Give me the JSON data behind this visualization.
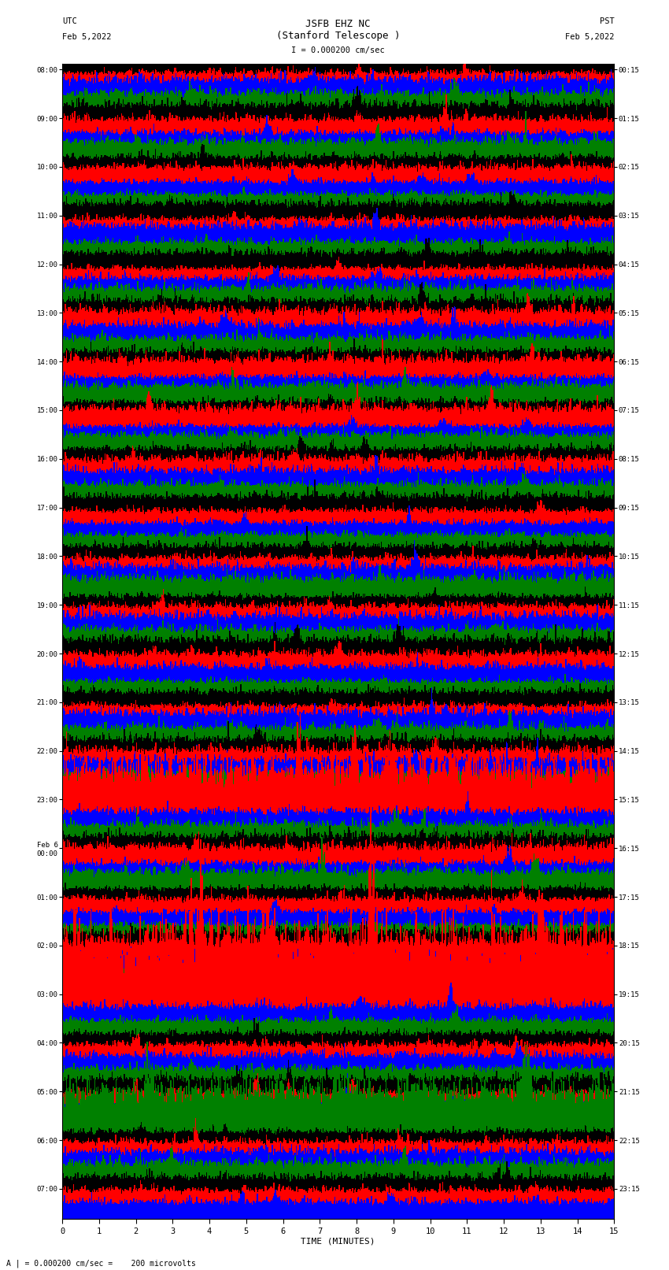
{
  "title_line1": "JSFB EHZ NC",
  "title_line2": "(Stanford Telescope )",
  "scale_label": "I = 0.000200 cm/sec",
  "utc_label": "UTC\nFeb 5,2022",
  "pst_label": "PST\nFeb 5,2022",
  "bottom_label": "A | = 0.000200 cm/sec =    200 microvolts",
  "xlabel": "TIME (MINUTES)",
  "colors": [
    "black",
    "red",
    "blue",
    "green"
  ],
  "left_times": [
    "08:00",
    "",
    "",
    "",
    "09:00",
    "",
    "",
    "",
    "10:00",
    "",
    "",
    "",
    "11:00",
    "",
    "",
    "",
    "12:00",
    "",
    "",
    "",
    "13:00",
    "",
    "",
    "",
    "14:00",
    "",
    "",
    "",
    "15:00",
    "",
    "",
    "",
    "16:00",
    "",
    "",
    "",
    "17:00",
    "",
    "",
    "",
    "18:00",
    "",
    "",
    "",
    "19:00",
    "",
    "",
    "",
    "20:00",
    "",
    "",
    "",
    "21:00",
    "",
    "",
    "",
    "22:00",
    "",
    "",
    "",
    "23:00",
    "",
    "",
    "",
    "Feb 6\n00:00",
    "",
    "",
    "",
    "01:00",
    "",
    "",
    "",
    "02:00",
    "",
    "",
    "",
    "03:00",
    "",
    "",
    "",
    "04:00",
    "",
    "",
    "",
    "05:00",
    "",
    "",
    "",
    "06:00",
    "",
    "",
    "",
    "07:00",
    "",
    ""
  ],
  "right_times": [
    "00:15",
    "",
    "",
    "",
    "01:15",
    "",
    "",
    "",
    "02:15",
    "",
    "",
    "",
    "03:15",
    "",
    "",
    "",
    "04:15",
    "",
    "",
    "",
    "05:15",
    "",
    "",
    "",
    "06:15",
    "",
    "",
    "",
    "07:15",
    "",
    "",
    "",
    "08:15",
    "",
    "",
    "",
    "09:15",
    "",
    "",
    "",
    "10:15",
    "",
    "",
    "",
    "11:15",
    "",
    "",
    "",
    "12:15",
    "",
    "",
    "",
    "13:15",
    "",
    "",
    "",
    "14:15",
    "",
    "",
    "",
    "15:15",
    "",
    "",
    "",
    "16:15",
    "",
    "",
    "",
    "17:15",
    "",
    "",
    "",
    "18:15",
    "",
    "",
    "",
    "19:15",
    "",
    "",
    "",
    "20:15",
    "",
    "",
    "",
    "21:15",
    "",
    "",
    "",
    "22:15",
    "",
    "",
    "",
    "23:15",
    "",
    ""
  ],
  "n_rows": 95,
  "minutes": 15,
  "sample_rate": 100,
  "amplitude": 0.42,
  "background_color": "white",
  "line_width": 0.35,
  "special_green_row": 77,
  "special_green_amp": 2.5,
  "special_red_row": 61,
  "special_red_amp": 1.6,
  "special_red2_row": 87,
  "special_red2_amp": 1.4,
  "grid_color": "#aaaaaa"
}
